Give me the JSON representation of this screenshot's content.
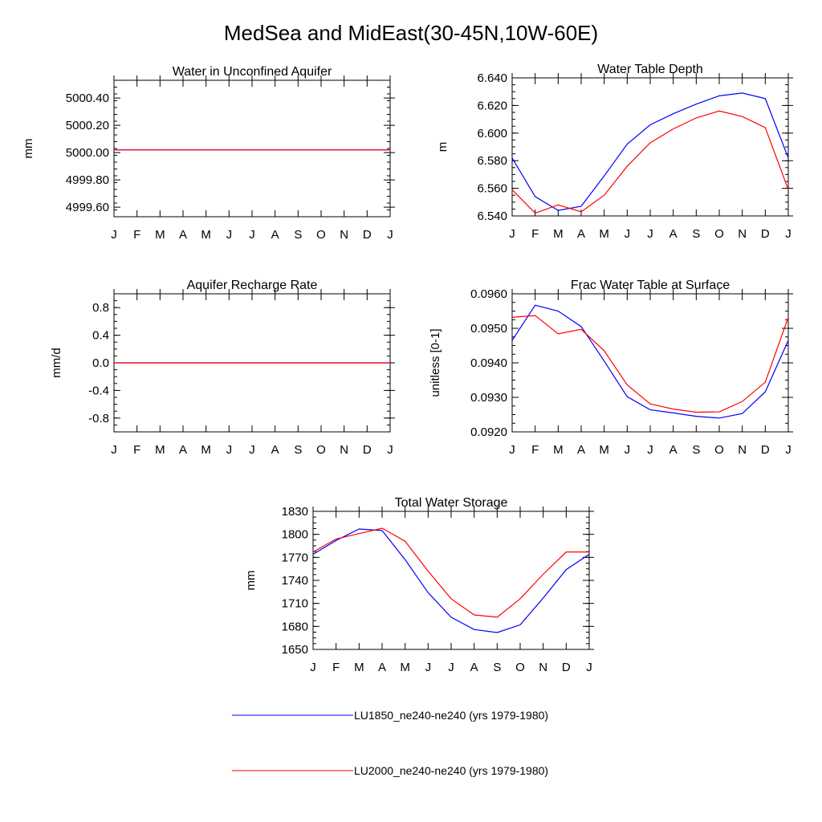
{
  "figure": {
    "title": "MedSea and MidEast(30-45N,10W-60E)"
  },
  "colors": {
    "LU1850": "#0000ff",
    "LU2000": "#ff0000"
  },
  "legend": [
    {
      "label": "LU1850_ne240-ne240 (yrs 1979-1980)",
      "color": "#0000ff"
    },
    {
      "label": "LU2000_ne240-ne240 (yrs 1979-1980)",
      "color": "#ff0000"
    }
  ],
  "chart_data": [
    {
      "type": "line",
      "title": "Water in Unconfined Aquifer",
      "ylabel": "mm",
      "xticks": [
        "J",
        "F",
        "M",
        "A",
        "M",
        "J",
        "J",
        "A",
        "S",
        "O",
        "N",
        "D",
        "J"
      ],
      "ylim": [
        4999.53,
        5000.53
      ],
      "yticks": [
        4999.6,
        4999.8,
        5000.0,
        5000.2,
        5000.4
      ],
      "ytick_labels": [
        "4999.60",
        "4999.80",
        "5000.00",
        "5000.20",
        "5000.40"
      ],
      "series": [
        {
          "name": "LU1850",
          "color": "#0000ff",
          "values": [
            5000.02,
            5000.02,
            5000.02,
            5000.02,
            5000.02,
            5000.02,
            5000.02,
            5000.02,
            5000.02,
            5000.02,
            5000.02,
            5000.02,
            5000.02
          ]
        },
        {
          "name": "LU2000",
          "color": "#ff0000",
          "values": [
            5000.02,
            5000.02,
            5000.02,
            5000.02,
            5000.02,
            5000.02,
            5000.02,
            5000.02,
            5000.02,
            5000.02,
            5000.02,
            5000.02,
            5000.02
          ]
        }
      ]
    },
    {
      "type": "line",
      "title": "Water Table Depth",
      "ylabel": "m",
      "xticks": [
        "J",
        "F",
        "M",
        "A",
        "M",
        "J",
        "J",
        "A",
        "S",
        "O",
        "N",
        "D",
        "J"
      ],
      "ylim": [
        6.54,
        6.64
      ],
      "yticks": [
        6.54,
        6.56,
        6.58,
        6.6,
        6.62,
        6.64
      ],
      "ytick_labels": [
        "6.540",
        "6.560",
        "6.580",
        "6.600",
        "6.620",
        "6.640"
      ],
      "series": [
        {
          "name": "LU1850",
          "color": "#0000ff",
          "values": [
            6.582,
            6.554,
            6.544,
            6.547,
            6.569,
            6.592,
            6.606,
            6.614,
            6.621,
            6.627,
            6.629,
            6.625,
            6.582
          ]
        },
        {
          "name": "LU2000",
          "color": "#ff0000",
          "values": [
            6.559,
            6.542,
            6.548,
            6.543,
            6.555,
            6.576,
            6.593,
            6.603,
            6.611,
            6.616,
            6.612,
            6.604,
            6.559
          ]
        }
      ]
    },
    {
      "type": "line",
      "title": "Aquifer Recharge Rate",
      "ylabel": "mm/d",
      "xticks": [
        "J",
        "F",
        "M",
        "A",
        "M",
        "J",
        "J",
        "A",
        "S",
        "O",
        "N",
        "D",
        "J"
      ],
      "ylim": [
        -1.0,
        1.0
      ],
      "yticks": [
        -0.8,
        -0.4,
        0.0,
        0.4,
        0.8
      ],
      "ytick_labels": [
        "-0.8",
        "-0.4",
        "0.0",
        "0.4",
        "0.8"
      ],
      "series": [
        {
          "name": "LU1850",
          "color": "#0000ff",
          "values": [
            0,
            0,
            0,
            0,
            0,
            0,
            0,
            0,
            0,
            0,
            0,
            0,
            0
          ]
        },
        {
          "name": "LU2000",
          "color": "#ff0000",
          "values": [
            0,
            0,
            0,
            0,
            0,
            0,
            0,
            0,
            0,
            0,
            0,
            0,
            0
          ]
        }
      ]
    },
    {
      "type": "line",
      "title": "Frac Water Table at Surface",
      "ylabel": "unitless [0-1]",
      "xticks": [
        "J",
        "F",
        "M",
        "A",
        "M",
        "J",
        "J",
        "A",
        "S",
        "O",
        "N",
        "D",
        "J"
      ],
      "ylim": [
        0.092,
        0.096
      ],
      "yticks": [
        0.092,
        0.093,
        0.094,
        0.095,
        0.096
      ],
      "ytick_labels": [
        "0.0920",
        "0.0930",
        "0.0940",
        "0.0950",
        "0.0960"
      ],
      "series": [
        {
          "name": "LU1850",
          "color": "#0000ff",
          "values": [
            0.09465,
            0.09567,
            0.0955,
            0.09505,
            0.09405,
            0.09302,
            0.09264,
            0.09255,
            0.09245,
            0.0924,
            0.09253,
            0.09316,
            0.09465
          ]
        },
        {
          "name": "LU2000",
          "color": "#ff0000",
          "values": [
            0.09532,
            0.09537,
            0.09484,
            0.09497,
            0.09435,
            0.09336,
            0.09281,
            0.09266,
            0.09257,
            0.09258,
            0.09288,
            0.09344,
            0.09532
          ]
        }
      ]
    },
    {
      "type": "line",
      "title": "Total Water Storage",
      "ylabel": "mm",
      "xticks": [
        "J",
        "F",
        "M",
        "A",
        "M",
        "J",
        "J",
        "A",
        "S",
        "O",
        "N",
        "D",
        "J"
      ],
      "ylim": [
        1650,
        1830
      ],
      "yticks": [
        1650,
        1680,
        1710,
        1740,
        1770,
        1800,
        1830
      ],
      "ytick_labels": [
        "1650",
        "1680",
        "1710",
        "1740",
        "1770",
        "1800",
        "1830"
      ],
      "series": [
        {
          "name": "LU1850",
          "color": "#0000ff",
          "values": [
            1774,
            1792,
            1807,
            1805,
            1767,
            1724,
            1692,
            1676,
            1672,
            1682,
            1717,
            1754,
            1774
          ]
        },
        {
          "name": "LU2000",
          "color": "#ff0000",
          "values": [
            1777,
            1794,
            1801,
            1808,
            1791,
            1752,
            1716,
            1695,
            1692,
            1716,
            1748,
            1777,
            1777
          ]
        }
      ]
    }
  ]
}
